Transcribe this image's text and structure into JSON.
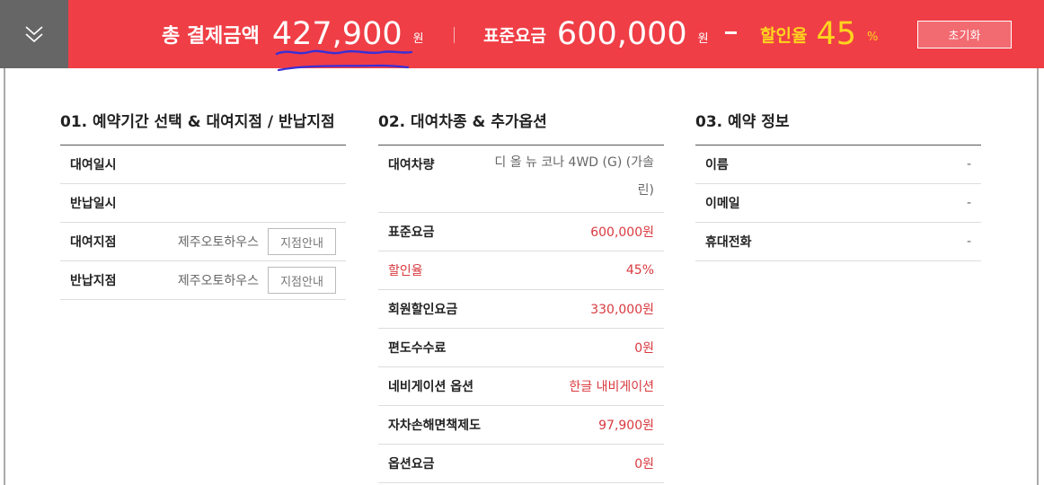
{
  "summary": {
    "total_label": "총 결제금액",
    "total_value": "427,900",
    "total_unit": "원",
    "standard_label": "표준요금",
    "standard_value": "600,000",
    "standard_unit": "원",
    "discount_label": "할인율",
    "discount_value": "45",
    "discount_unit": "%",
    "reset_label": "초기화"
  },
  "section1": {
    "title": "01. 예약기간 선택 & 대여지점 / 반납지점",
    "rows": [
      {
        "label": "대여일시",
        "value": ""
      },
      {
        "label": "반납일시",
        "value": ""
      },
      {
        "label": "대여지점",
        "value": "제주오토하우스",
        "button": "지점안내"
      },
      {
        "label": "반납지점",
        "value": "제주오토하우스",
        "button": "지점안내"
      }
    ]
  },
  "section2": {
    "title": "02. 대여차종 & 추가옵션",
    "rows": [
      {
        "label": "대여차량",
        "value": "디 올 뉴 코나 4WD (G) (가솔린)"
      },
      {
        "label": "표준요금",
        "value": "600,000원"
      },
      {
        "label": "할인율",
        "value": "45%"
      },
      {
        "label": "회원할인요금",
        "value": "330,000원"
      },
      {
        "label": "편도수수료",
        "value": "0원"
      },
      {
        "label": "네비게이션 옵션",
        "value": "한글 내비게이션"
      },
      {
        "label": "자차손해면책제도",
        "value": "97,900원"
      },
      {
        "label": "옵션요금",
        "value": "0원"
      }
    ]
  },
  "section3": {
    "title": "03. 예약 정보",
    "rows": [
      {
        "label": "이름",
        "value": "-"
      },
      {
        "label": "이메일",
        "value": "-"
      },
      {
        "label": "휴대전화",
        "value": "-"
      }
    ]
  },
  "colors": {
    "topbar": "#ef3e46",
    "toggle": "#666666",
    "highlight": "#ffd51e",
    "red_text": "#d9393f",
    "annotation": "#3a2fd6"
  },
  "icons": {
    "toggle": "chevron-double-down-icon"
  }
}
